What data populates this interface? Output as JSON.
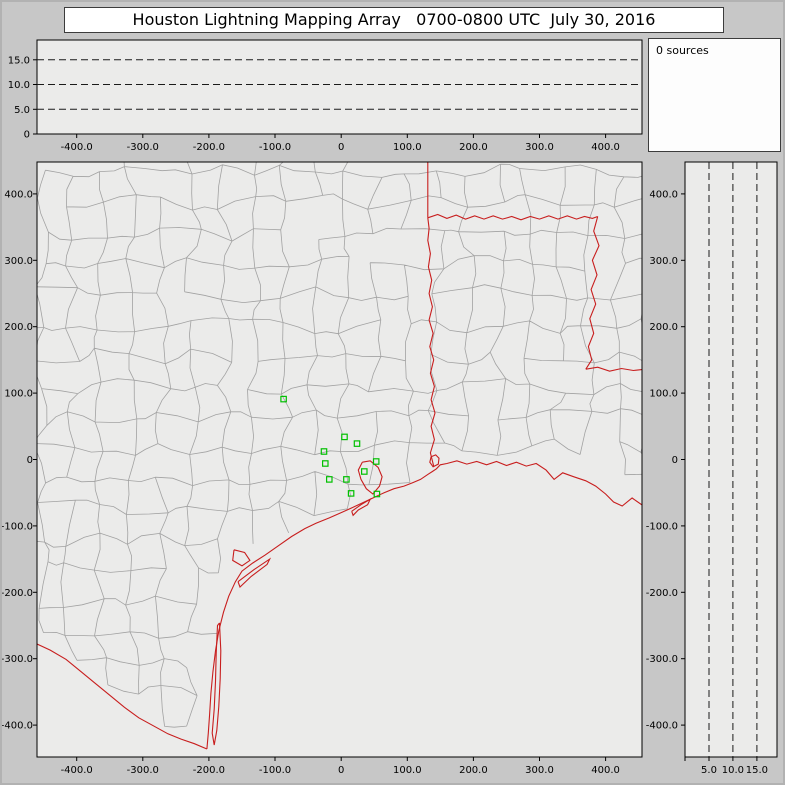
{
  "window": {
    "title": "Houston Lightning Mapping Array   0700-0800 UTC  July 30, 2016"
  },
  "sources_panel": {
    "label": "0 sources"
  },
  "colors": {
    "window_bg": "#c7c7c7",
    "plot_bg": "#ebebea",
    "grid_line": "#1a1a1a",
    "county_line": "#a2a2a2",
    "state_line": "#c81e1e",
    "station": "#00c000",
    "axis_text": "#000000",
    "panel_border": "#000000"
  },
  "chart_data": [
    {
      "id": "ew-altitude",
      "type": "scatter",
      "points": [],
      "xlim": [
        -460,
        455
      ],
      "ylim": [
        0,
        19
      ],
      "x_ticks": [
        -400,
        -300,
        -200,
        -100,
        0,
        100,
        200,
        300,
        400
      ],
      "x_tick_labels": [
        "-400.0",
        "-300.0",
        "-200.0",
        "-100.0",
        "0",
        "100.0",
        "200.0",
        "300.0",
        "400.0"
      ],
      "y_ticks": [
        15,
        10,
        5,
        0
      ],
      "y_tick_labels": [
        "15.0",
        "10.0",
        "5.0",
        "0"
      ],
      "dashed_levels": [
        5,
        10,
        15
      ],
      "grid": "dashed-horizontal",
      "legend": "none"
    },
    {
      "id": "plan-view",
      "type": "scatter",
      "points": [],
      "xlim": [
        -460,
        455
      ],
      "ylim": [
        -448,
        448
      ],
      "x_ticks": [
        -400,
        -300,
        -200,
        -100,
        0,
        100,
        200,
        300,
        400
      ],
      "x_tick_labels": [
        "-400.0",
        "-300.0",
        "-200.0",
        "-100.0",
        "0",
        "100.0",
        "200.0",
        "300.0",
        "400.0"
      ],
      "y_ticks": [
        400,
        300,
        200,
        100,
        0,
        -100,
        -200,
        -300,
        -400
      ],
      "y_tick_labels": [
        "400.0",
        "300.0",
        "200.0",
        "100.0",
        "0",
        "-100.0",
        "-200.0",
        "-300.0",
        "-400.0"
      ],
      "stations": [
        [
          -87,
          91
        ],
        [
          -26,
          12
        ],
        [
          5,
          34
        ],
        [
          24,
          24
        ],
        [
          -24,
          -6
        ],
        [
          -18,
          -30
        ],
        [
          8,
          -30
        ],
        [
          35,
          -18
        ],
        [
          53,
          -3
        ],
        [
          15,
          -51
        ],
        [
          54,
          -52
        ]
      ],
      "boundaries": {
        "coastline": [
          [
            460,
            -72
          ],
          [
            440,
            -58
          ],
          [
            425,
            -70
          ],
          [
            412,
            -64
          ],
          [
            400,
            -52
          ],
          [
            385,
            -40
          ],
          [
            370,
            -32
          ],
          [
            352,
            -26
          ],
          [
            335,
            -20
          ],
          [
            322,
            -30
          ],
          [
            310,
            -16
          ],
          [
            295,
            -6
          ],
          [
            280,
            -10
          ],
          [
            265,
            -4
          ],
          [
            250,
            -9
          ],
          [
            235,
            -3
          ],
          [
            220,
            -8
          ],
          [
            205,
            -3
          ],
          [
            190,
            -7
          ],
          [
            175,
            -2
          ],
          [
            160,
            -6
          ],
          [
            150,
            -8
          ],
          [
            144,
            -14
          ],
          [
            138,
            -18
          ],
          [
            132,
            -22
          ],
          [
            120,
            -30
          ],
          [
            108,
            -35
          ],
          [
            95,
            -40
          ],
          [
            80,
            -44
          ],
          [
            65,
            -50
          ],
          [
            50,
            -57
          ],
          [
            35,
            -64
          ],
          [
            18,
            -72
          ],
          [
            0,
            -80
          ],
          [
            -18,
            -88
          ],
          [
            -38,
            -96
          ],
          [
            -55,
            -104
          ],
          [
            -75,
            -116
          ],
          [
            -95,
            -130
          ],
          [
            -115,
            -144
          ],
          [
            -134,
            -156
          ],
          [
            -150,
            -168
          ],
          [
            -160,
            -184
          ],
          [
            -170,
            -206
          ],
          [
            -178,
            -230
          ],
          [
            -185,
            -258
          ],
          [
            -190,
            -288
          ],
          [
            -194,
            -320
          ],
          [
            -197,
            -352
          ],
          [
            -199,
            -384
          ],
          [
            -201,
            -412
          ],
          [
            -203,
            -436
          ]
        ],
        "rio_grande": [
          [
            -203,
            -436
          ],
          [
            -222,
            -428
          ],
          [
            -242,
            -421
          ],
          [
            -262,
            -413
          ],
          [
            -284,
            -401
          ],
          [
            -306,
            -389
          ],
          [
            -328,
            -373
          ],
          [
            -350,
            -355
          ],
          [
            -372,
            -337
          ],
          [
            -394,
            -319
          ],
          [
            -416,
            -301
          ],
          [
            -440,
            -287
          ],
          [
            -466,
            -275
          ]
        ],
        "tx_la_border": [
          [
            140,
            -10
          ],
          [
            135,
            10
          ],
          [
            141,
            30
          ],
          [
            136,
            50
          ],
          [
            142,
            70
          ],
          [
            136,
            90
          ],
          [
            141,
            110
          ],
          [
            135,
            130
          ],
          [
            140,
            150
          ],
          [
            134,
            170
          ],
          [
            139,
            190
          ],
          [
            133,
            210
          ],
          [
            138,
            230
          ],
          [
            133,
            250
          ],
          [
            137,
            270
          ],
          [
            132,
            290
          ],
          [
            135,
            310
          ],
          [
            131,
            330
          ],
          [
            133,
            348
          ],
          [
            131,
            364
          ]
        ],
        "ok_ar_border": [
          [
            131,
            364
          ],
          [
            131,
            452
          ]
        ],
        "red_river": [
          [
            131,
            364
          ],
          [
            146,
            369
          ],
          [
            160,
            363
          ],
          [
            174,
            368
          ],
          [
            188,
            362
          ],
          [
            202,
            367
          ],
          [
            216,
            362
          ],
          [
            230,
            367
          ],
          [
            244,
            362
          ],
          [
            258,
            366
          ],
          [
            272,
            361
          ],
          [
            286,
            366
          ],
          [
            300,
            362
          ],
          [
            314,
            367
          ],
          [
            328,
            362
          ],
          [
            342,
            367
          ],
          [
            356,
            362
          ],
          [
            368,
            366
          ],
          [
            380,
            363
          ],
          [
            388,
            366
          ]
        ],
        "tx_ar_la_river": [
          [
            388,
            366
          ],
          [
            382,
            344
          ],
          [
            390,
            322
          ],
          [
            380,
            300
          ],
          [
            387,
            278
          ],
          [
            378,
            256
          ],
          [
            385,
            234
          ],
          [
            376,
            212
          ],
          [
            382,
            190
          ],
          [
            374,
            170
          ],
          [
            379,
            150
          ],
          [
            370,
            136
          ]
        ],
        "ar_la_border": [
          [
            370,
            136
          ],
          [
            388,
            139
          ],
          [
            406,
            133
          ],
          [
            424,
            137
          ],
          [
            442,
            134
          ],
          [
            461,
            136
          ]
        ],
        "galveston_bay": [
          [
            32,
            -4
          ],
          [
            44,
            -2
          ],
          [
            56,
            -12
          ],
          [
            62,
            -26
          ],
          [
            58,
            -40
          ],
          [
            48,
            -52
          ],
          [
            38,
            -44
          ],
          [
            30,
            -30
          ],
          [
            26,
            -16
          ],
          [
            32,
            -4
          ]
        ],
        "sabine_lake": [
          [
            136,
            4
          ],
          [
            143,
            7
          ],
          [
            148,
            2
          ],
          [
            147,
            -7
          ],
          [
            139,
            -11
          ],
          [
            134,
            -4
          ],
          [
            136,
            4
          ]
        ],
        "galveston_island": [
          [
            16,
            -78
          ],
          [
            30,
            -68
          ],
          [
            44,
            -60
          ],
          [
            40,
            -68
          ],
          [
            26,
            -76
          ],
          [
            18,
            -84
          ],
          [
            16,
            -78
          ]
        ],
        "matagorda_island": [
          [
            -156,
            -184
          ],
          [
            -132,
            -166
          ],
          [
            -108,
            -150
          ],
          [
            -112,
            -158
          ],
          [
            -136,
            -176
          ],
          [
            -153,
            -192
          ],
          [
            -156,
            -184
          ]
        ],
        "padre_island": [
          [
            -184,
            -246
          ],
          [
            -182,
            -288
          ],
          [
            -183,
            -330
          ],
          [
            -185,
            -372
          ],
          [
            -188,
            -408
          ],
          [
            -192,
            -430
          ],
          [
            -195,
            -412
          ],
          [
            -192,
            -376
          ],
          [
            -190,
            -334
          ],
          [
            -189,
            -292
          ],
          [
            -187,
            -250
          ],
          [
            -184,
            -246
          ]
        ],
        "corpus_christi_bay": [
          [
            -162,
            -136
          ],
          [
            -146,
            -140
          ],
          [
            -138,
            -152
          ],
          [
            -150,
            -160
          ],
          [
            -164,
            -152
          ],
          [
            -162,
            -136
          ]
        ]
      },
      "counties": {
        "seed": 20160730,
        "spacing_km": 46,
        "jitter_km": 13,
        "skip_probability": 0.07
      }
    },
    {
      "id": "ns-altitude",
      "type": "scatter",
      "points": [],
      "xlim": [
        0,
        19.2
      ],
      "ylim": [
        -448,
        448
      ],
      "x_ticks": [
        0,
        5,
        10,
        15
      ],
      "x_tick_labels": [
        "",
        "5.0",
        "10.0",
        "15.0"
      ],
      "y_ticks": [
        400,
        300,
        200,
        100,
        0,
        -100,
        -200,
        -300,
        -400
      ],
      "y_tick_labels": [
        "400.0",
        "300.0",
        "200.0",
        "100.0",
        "0",
        "-100.0",
        "-200.0",
        "-300.0",
        "-400.0"
      ],
      "dashed_levels": [
        5,
        10,
        15
      ],
      "grid": "dashed-vertical",
      "legend": "none"
    }
  ]
}
